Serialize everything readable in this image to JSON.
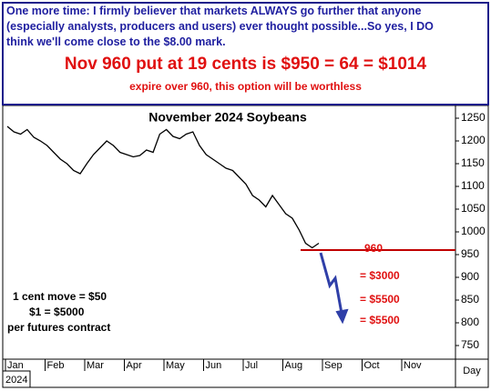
{
  "header": {
    "lines": [
      "One more time: I firmly believer that markets ALWAYS go further that anyone",
      "(especially analysts, producers and users) ever thought possible...So yes, I DO",
      "think we'll come close to the $8.00 mark."
    ],
    "headline": "Nov 960 put at 19 cents is $950 = 64 = $1014",
    "note": "expire over 960, this option will be worthless"
  },
  "chart_data": {
    "type": "line",
    "title": "November 2024 Soybeans",
    "x_labels": [
      "Jan",
      "Feb",
      "Mar",
      "Apr",
      "May",
      "Jun",
      "Jul",
      "Aug",
      "Sep",
      "Oct",
      "Nov"
    ],
    "x_axis_label": "Day",
    "year": "2024",
    "values": [
      1232,
      1220,
      1215,
      1225,
      1208,
      1200,
      1190,
      1175,
      1160,
      1150,
      1135,
      1128,
      1150,
      1170,
      1185,
      1200,
      1190,
      1175,
      1170,
      1165,
      1168,
      1180,
      1175,
      1215,
      1225,
      1210,
      1205,
      1215,
      1220,
      1190,
      1170,
      1160,
      1150,
      1140,
      1135,
      1120,
      1105,
      1080,
      1070,
      1055,
      1080,
      1060,
      1040,
      1030,
      1005,
      975,
      965,
      975
    ],
    "color": "#000000",
    "ylim": [
      725,
      1275
    ],
    "yticks": [
      750,
      800,
      850,
      900,
      950,
      1000,
      1050,
      1100,
      1150,
      1200,
      1250
    ],
    "hline": 960,
    "annotations": [
      "= $3000",
      "= $5500",
      "= $5500"
    ],
    "notes": [
      "1 cent move = $50",
      "$1 = $5000",
      "per futures contract"
    ]
  }
}
